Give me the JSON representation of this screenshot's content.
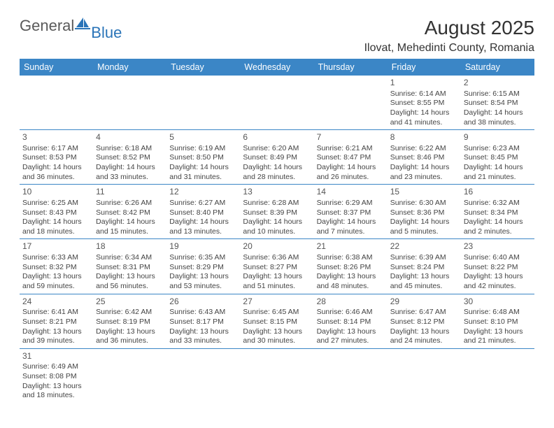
{
  "logo": {
    "main": "General",
    "accent": "Blue"
  },
  "title": "August 2025",
  "location": "Ilovat, Mehedinti County, Romania",
  "colors": {
    "header_bg": "#3b86c6",
    "header_fg": "#ffffff",
    "row_border": "#3b86c6",
    "body_text": "#444444",
    "title_text": "#333333",
    "logo_gray": "#5a5a5a",
    "logo_blue": "#2a74b8",
    "background": "#ffffff"
  },
  "days_of_week": [
    "Sunday",
    "Monday",
    "Tuesday",
    "Wednesday",
    "Thursday",
    "Friday",
    "Saturday"
  ],
  "weeks": [
    [
      null,
      null,
      null,
      null,
      null,
      {
        "n": "1",
        "sr": "6:14 AM",
        "ss": "8:55 PM",
        "dl": "14 hours and 41 minutes."
      },
      {
        "n": "2",
        "sr": "6:15 AM",
        "ss": "8:54 PM",
        "dl": "14 hours and 38 minutes."
      }
    ],
    [
      {
        "n": "3",
        "sr": "6:17 AM",
        "ss": "8:53 PM",
        "dl": "14 hours and 36 minutes."
      },
      {
        "n": "4",
        "sr": "6:18 AM",
        "ss": "8:52 PM",
        "dl": "14 hours and 33 minutes."
      },
      {
        "n": "5",
        "sr": "6:19 AM",
        "ss": "8:50 PM",
        "dl": "14 hours and 31 minutes."
      },
      {
        "n": "6",
        "sr": "6:20 AM",
        "ss": "8:49 PM",
        "dl": "14 hours and 28 minutes."
      },
      {
        "n": "7",
        "sr": "6:21 AM",
        "ss": "8:47 PM",
        "dl": "14 hours and 26 minutes."
      },
      {
        "n": "8",
        "sr": "6:22 AM",
        "ss": "8:46 PM",
        "dl": "14 hours and 23 minutes."
      },
      {
        "n": "9",
        "sr": "6:23 AM",
        "ss": "8:45 PM",
        "dl": "14 hours and 21 minutes."
      }
    ],
    [
      {
        "n": "10",
        "sr": "6:25 AM",
        "ss": "8:43 PM",
        "dl": "14 hours and 18 minutes."
      },
      {
        "n": "11",
        "sr": "6:26 AM",
        "ss": "8:42 PM",
        "dl": "14 hours and 15 minutes."
      },
      {
        "n": "12",
        "sr": "6:27 AM",
        "ss": "8:40 PM",
        "dl": "14 hours and 13 minutes."
      },
      {
        "n": "13",
        "sr": "6:28 AM",
        "ss": "8:39 PM",
        "dl": "14 hours and 10 minutes."
      },
      {
        "n": "14",
        "sr": "6:29 AM",
        "ss": "8:37 PM",
        "dl": "14 hours and 7 minutes."
      },
      {
        "n": "15",
        "sr": "6:30 AM",
        "ss": "8:36 PM",
        "dl": "14 hours and 5 minutes."
      },
      {
        "n": "16",
        "sr": "6:32 AM",
        "ss": "8:34 PM",
        "dl": "14 hours and 2 minutes."
      }
    ],
    [
      {
        "n": "17",
        "sr": "6:33 AM",
        "ss": "8:32 PM",
        "dl": "13 hours and 59 minutes."
      },
      {
        "n": "18",
        "sr": "6:34 AM",
        "ss": "8:31 PM",
        "dl": "13 hours and 56 minutes."
      },
      {
        "n": "19",
        "sr": "6:35 AM",
        "ss": "8:29 PM",
        "dl": "13 hours and 53 minutes."
      },
      {
        "n": "20",
        "sr": "6:36 AM",
        "ss": "8:27 PM",
        "dl": "13 hours and 51 minutes."
      },
      {
        "n": "21",
        "sr": "6:38 AM",
        "ss": "8:26 PM",
        "dl": "13 hours and 48 minutes."
      },
      {
        "n": "22",
        "sr": "6:39 AM",
        "ss": "8:24 PM",
        "dl": "13 hours and 45 minutes."
      },
      {
        "n": "23",
        "sr": "6:40 AM",
        "ss": "8:22 PM",
        "dl": "13 hours and 42 minutes."
      }
    ],
    [
      {
        "n": "24",
        "sr": "6:41 AM",
        "ss": "8:21 PM",
        "dl": "13 hours and 39 minutes."
      },
      {
        "n": "25",
        "sr": "6:42 AM",
        "ss": "8:19 PM",
        "dl": "13 hours and 36 minutes."
      },
      {
        "n": "26",
        "sr": "6:43 AM",
        "ss": "8:17 PM",
        "dl": "13 hours and 33 minutes."
      },
      {
        "n": "27",
        "sr": "6:45 AM",
        "ss": "8:15 PM",
        "dl": "13 hours and 30 minutes."
      },
      {
        "n": "28",
        "sr": "6:46 AM",
        "ss": "8:14 PM",
        "dl": "13 hours and 27 minutes."
      },
      {
        "n": "29",
        "sr": "6:47 AM",
        "ss": "8:12 PM",
        "dl": "13 hours and 24 minutes."
      },
      {
        "n": "30",
        "sr": "6:48 AM",
        "ss": "8:10 PM",
        "dl": "13 hours and 21 minutes."
      }
    ],
    [
      {
        "n": "31",
        "sr": "6:49 AM",
        "ss": "8:08 PM",
        "dl": "13 hours and 18 minutes."
      },
      null,
      null,
      null,
      null,
      null,
      null
    ]
  ],
  "labels": {
    "sunrise": "Sunrise: ",
    "sunset": "Sunset: ",
    "daylight": "Daylight: "
  }
}
